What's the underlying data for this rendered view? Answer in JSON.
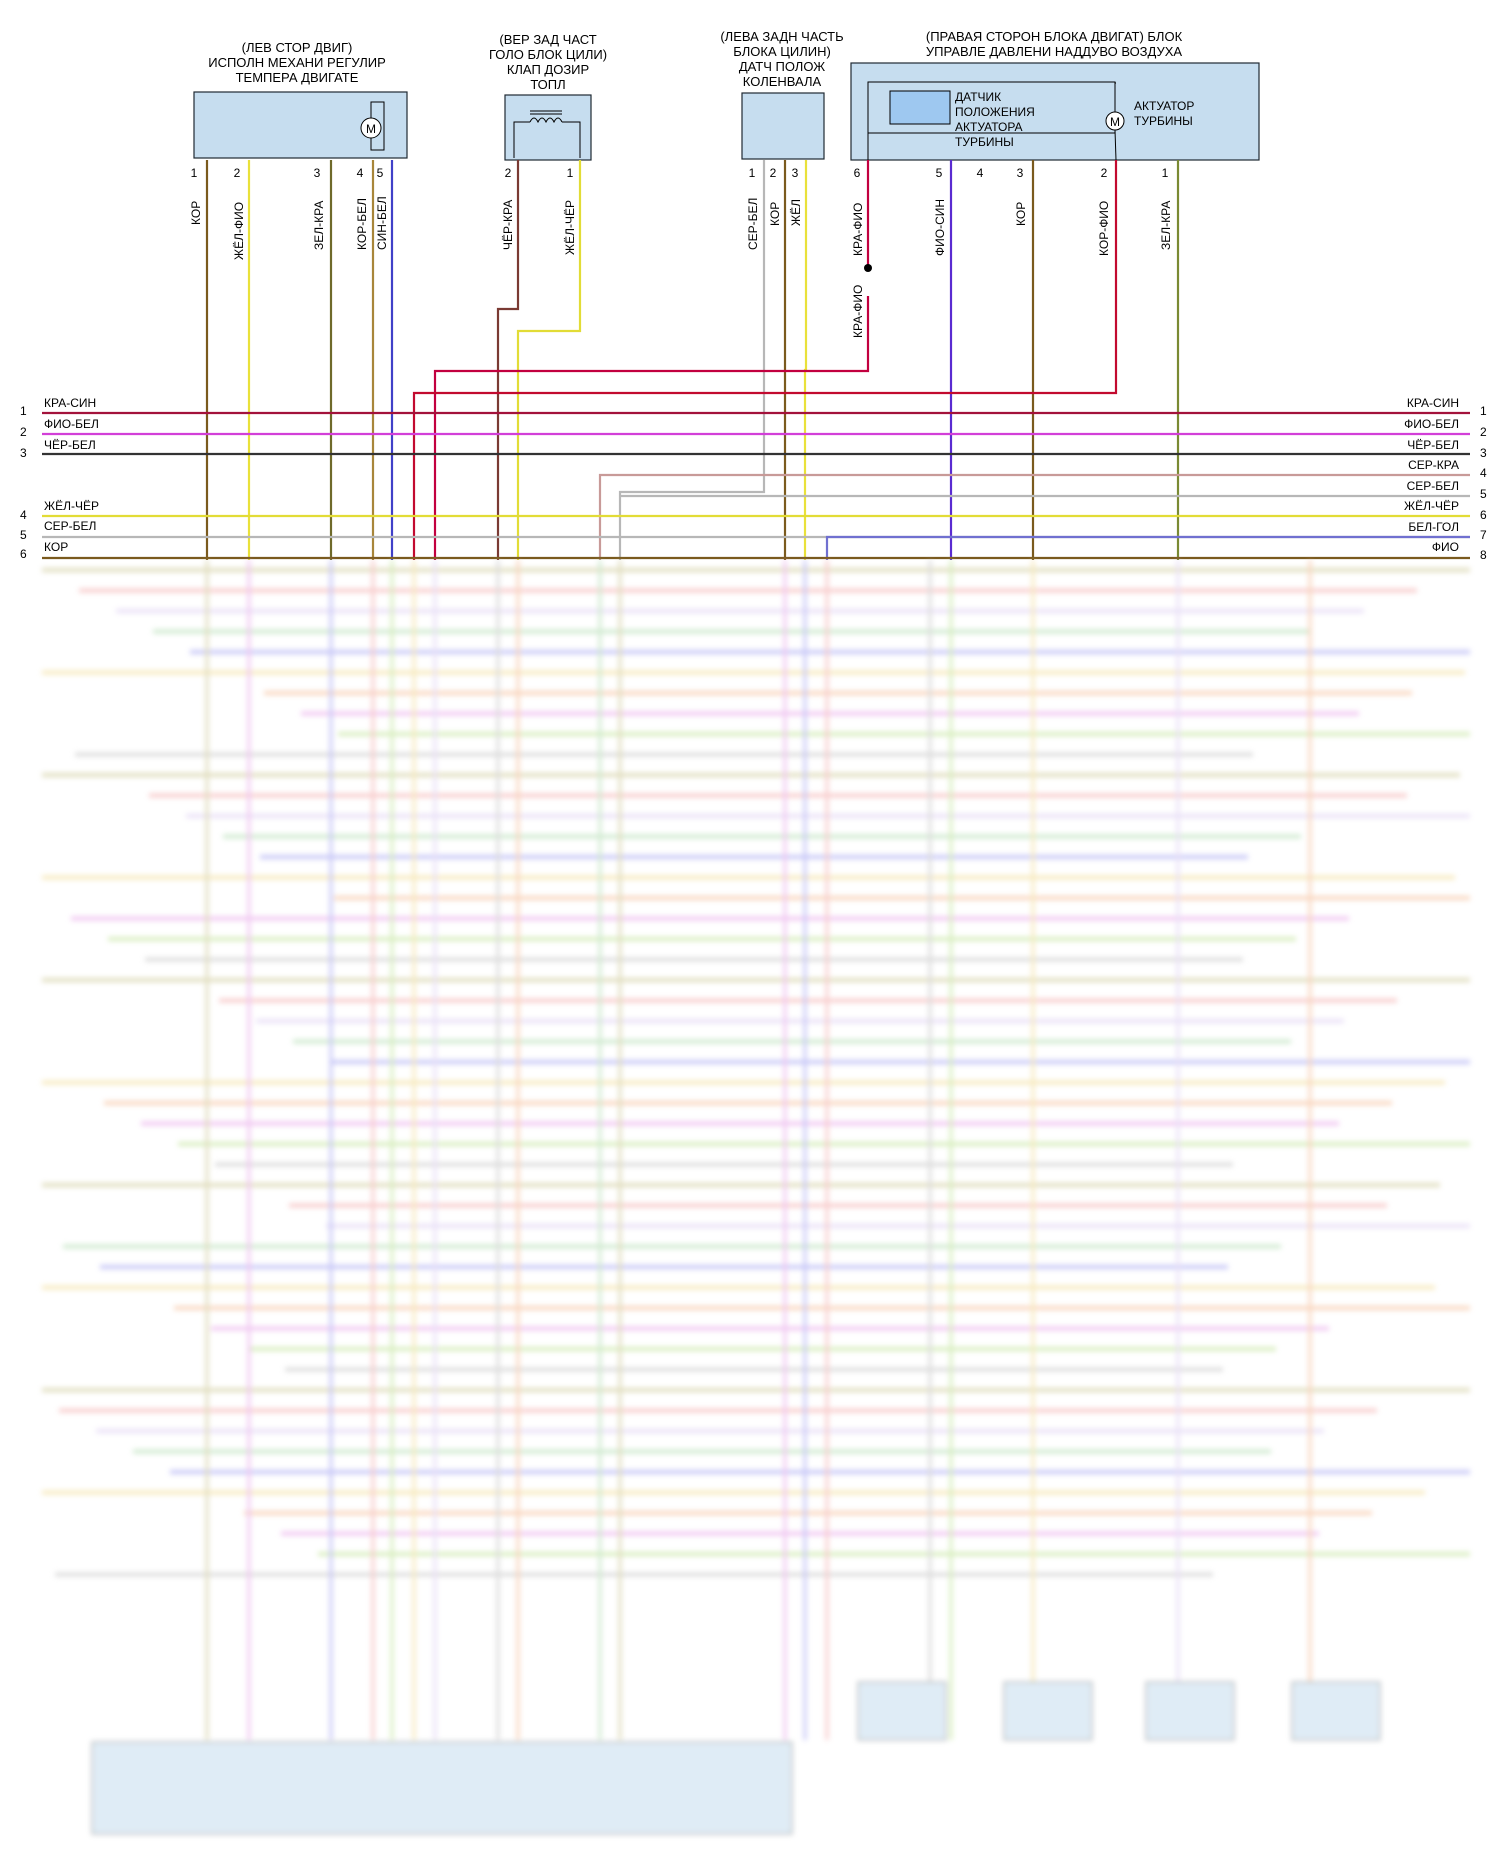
{
  "components": [
    {
      "id": "c1",
      "lines": [
        "(ЛЕВ СТОР ДВИГ)",
        "ИСПОЛН МЕХАНИ РЕГУЛИР",
        "ТЕМПЕРА ДВИГАТЕ"
      ],
      "inner_label": "M",
      "pins": [
        {
          "n": "1",
          "wire": "КОР"
        },
        {
          "n": "2",
          "wire": "ЖЁЛ-ФИО"
        },
        {
          "n": "3",
          "wire": "ЗЕЛ-КРА"
        },
        {
          "n": "4",
          "wire": "КОР-БЕЛ"
        },
        {
          "n": "5",
          "wire": "СИН-БЕЛ"
        }
      ]
    },
    {
      "id": "c2",
      "lines": [
        "(ВЕР ЗАД ЧАСТ",
        "ГОЛО БЛОК ЦИЛИ)",
        "КЛАП ДОЗИР",
        "ТОПЛ"
      ],
      "pins": [
        {
          "n": "2",
          "wire": "ЧЁР-КРА"
        },
        {
          "n": "1",
          "wire": "ЖЁЛ-ЧЁР"
        }
      ]
    },
    {
      "id": "c3",
      "lines": [
        "(ЛЕВА ЗАДН ЧАСТЬ",
        "БЛОКА ЦИЛИН)",
        "ДАТЧ ПОЛОЖ",
        "КОЛЕНВАЛА"
      ],
      "pins": [
        {
          "n": "1",
          "wire": "СЕР-БЕЛ"
        },
        {
          "n": "2",
          "wire": "КОР"
        },
        {
          "n": "3",
          "wire": "ЖЁЛ"
        }
      ]
    },
    {
      "id": "c4",
      "lines": [
        "(ПРАВАЯ СТОРОН БЛОКА ДВИГАТ) БЛОК",
        "УПРАВЛЕ ДАВЛЕНИ НАДДУВО ВОЗДУХА"
      ],
      "sensor_label": [
        "ДАТЧИК",
        "ПОЛОЖЕНИЯ",
        "АКТУАТОРА",
        "ТУРБИНЫ"
      ],
      "actuator_label": [
        "АКТУАТОР",
        "ТУРБИНЫ"
      ],
      "inner_label": "M",
      "pins": [
        {
          "n": "6",
          "wire": "КРА-ФИО"
        },
        {
          "n": "5",
          "wire": "ФИО-СИН"
        },
        {
          "n": "4",
          "wire": ""
        },
        {
          "n": "3",
          "wire": "КОР"
        },
        {
          "n": "2",
          "wire": "КОР-ФИО"
        },
        {
          "n": "1",
          "wire": "ЗЕЛ-КРА"
        }
      ],
      "splice_wire": "КРА-ФИО"
    }
  ],
  "left_bus": [
    {
      "n": "1",
      "label": "КРА-СИН"
    },
    {
      "n": "2",
      "label": "ФИО-БЕЛ"
    },
    {
      "n": "3",
      "label": "ЧЁР-БЕЛ"
    },
    {
      "n": "4",
      "label": "ЖЁЛ-ЧЁР"
    },
    {
      "n": "5",
      "label": "СЕР-БЕЛ"
    },
    {
      "n": "6",
      "label": "КОР"
    }
  ],
  "right_bus": [
    {
      "n": "1",
      "label": "КРА-СИН"
    },
    {
      "n": "2",
      "label": "ФИО-БЕЛ"
    },
    {
      "n": "3",
      "label": "ЧЁР-БЕЛ"
    },
    {
      "n": "4",
      "label": "СЕР-КРА"
    },
    {
      "n": "5",
      "label": "СЕР-БЕЛ"
    },
    {
      "n": "6",
      "label": "ЖЁЛ-ЧЁР"
    },
    {
      "n": "7",
      "label": "БЕЛ-ГОЛ"
    },
    {
      "n": "8",
      "label": "ФИО"
    }
  ],
  "colors": {
    "brown": "#7a5a1e",
    "yellow": "#e9e13a",
    "green_red": "#6f6a2a",
    "brown_white": "#a8863a",
    "blue_white": "#4040c8",
    "black_red": "#7a3a33",
    "yel_black": "#e2dc36",
    "gray_white": "#b7b7b7",
    "red_purple": "#c2003f",
    "purple_blue": "#5a2bd1",
    "brown_purple": "#c20a2f",
    "green_red2": "#7a8a33",
    "red_blue": "#a3123b",
    "purple_white": "#d23fd8",
    "black_white": "#333333",
    "gray_red": "#c89a98",
    "white_blue": "#7070d0",
    "purple": "#c0c0f0",
    "component": "#c6ddef"
  }
}
